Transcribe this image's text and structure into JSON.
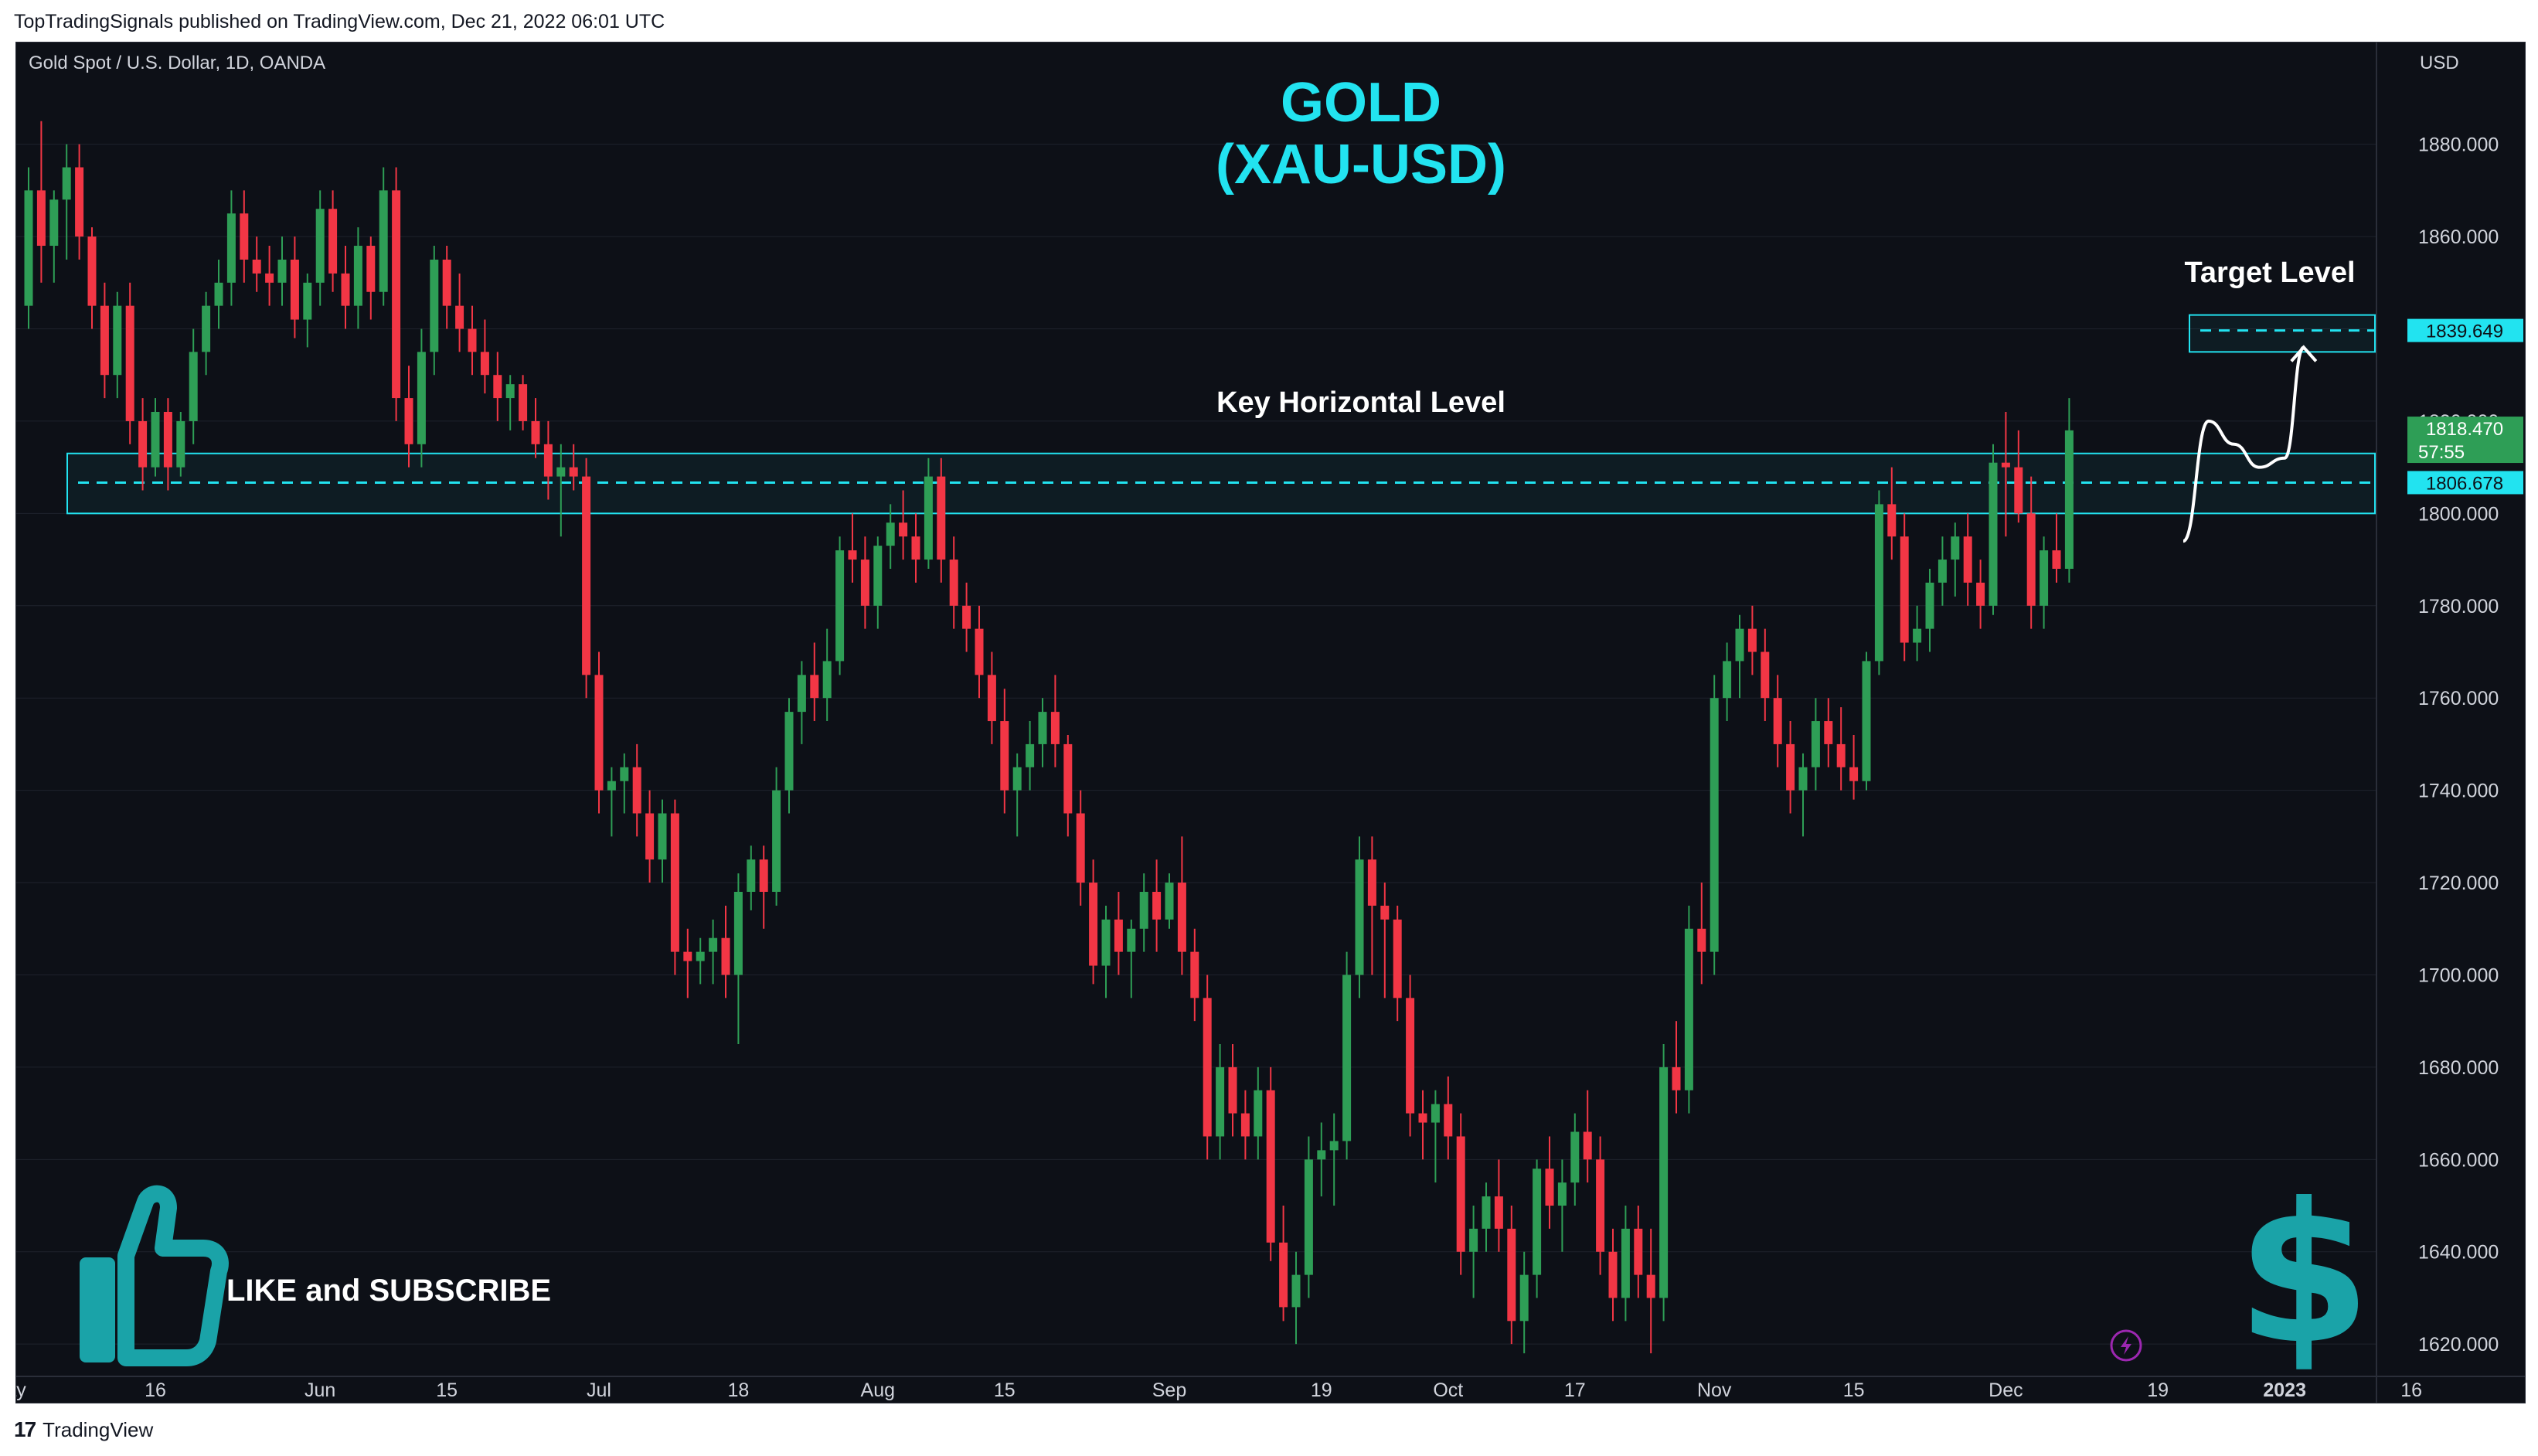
{
  "header": {
    "published_line": "TopTradingSignals published on TradingView.com, Dec 21, 2022 06:01 UTC"
  },
  "chart_title": {
    "symbol_line": "Gold Spot / U.S. Dollar, 1D, OANDA",
    "big_title_line1": "GOLD",
    "big_title_line2": "(XAU-USD)",
    "title_color": "#22e3f0"
  },
  "annotations": {
    "key_level_label": "Key Horizontal Level",
    "target_label": "Target Level",
    "like_subscribe": "LIKE and SUBSCRIBE"
  },
  "footer": {
    "brand": "TradingView",
    "logo_text": "17"
  },
  "colors": {
    "bull": "#2e9e56",
    "bear": "#f23645",
    "cyan": "#22e3f0",
    "background": "#0d1017",
    "teal_icon": "#1aa3a8"
  },
  "icons": [
    "thumbs-up-icon",
    "dollar-sign-icon",
    "lightning-icon"
  ],
  "chart_data": {
    "type": "candlestick",
    "axis_unit": "USD",
    "ylim": [
      1614,
      1892
    ],
    "y_ticks": [
      1620,
      1640,
      1660,
      1680,
      1700,
      1720,
      1740,
      1760,
      1780,
      1800,
      1820,
      1840,
      1860,
      1880
    ],
    "y_tick_labels": [
      "1620.000",
      "1640.000",
      "1660.000",
      "1680.000",
      "1700.000",
      "1720.000",
      "1740.000",
      "1760.000",
      "1780.000",
      "1800.000",
      "1820.000",
      "1840.000",
      "1860.000",
      "1880.000"
    ],
    "x_ticks": [
      {
        "label": "ay",
        "i": -1
      },
      {
        "label": "16",
        "i": 10
      },
      {
        "label": "Jun",
        "i": 23
      },
      {
        "label": "15",
        "i": 33
      },
      {
        "label": "Jul",
        "i": 45
      },
      {
        "label": "18",
        "i": 56
      },
      {
        "label": "Aug",
        "i": 67
      },
      {
        "label": "15",
        "i": 77
      },
      {
        "label": "Sep",
        "i": 90
      },
      {
        "label": "19",
        "i": 102
      },
      {
        "label": "Oct",
        "i": 112
      },
      {
        "label": "17",
        "i": 122
      },
      {
        "label": "Nov",
        "i": 133
      },
      {
        "label": "15",
        "i": 144
      },
      {
        "label": "Dec",
        "i": 156
      },
      {
        "label": "19",
        "i": 168
      },
      {
        "label": "2023",
        "i": 178
      },
      {
        "label": "16",
        "i": 188
      }
    ],
    "key_level": {
      "value": 1806.678,
      "label": "1806.678",
      "zone": [
        1800,
        1813
      ]
    },
    "target_level": {
      "value": 1839.649,
      "label": "1839.649",
      "zone": [
        1835,
        1843
      ]
    },
    "last_price": {
      "value": 1818.47,
      "label": "1818.470",
      "countdown": "57:55"
    },
    "projection_path": [
      [
        170,
        1794
      ],
      [
        172,
        1820
      ],
      [
        174,
        1815
      ],
      [
        176,
        1810
      ],
      [
        178,
        1812
      ],
      [
        179.5,
        1836
      ]
    ],
    "candles": [
      [
        1845,
        1875,
        1840,
        1870
      ],
      [
        1870,
        1885,
        1850,
        1858
      ],
      [
        1858,
        1870,
        1850,
        1868
      ],
      [
        1868,
        1880,
        1855,
        1875
      ],
      [
        1875,
        1880,
        1855,
        1860
      ],
      [
        1860,
        1862,
        1840,
        1845
      ],
      [
        1845,
        1850,
        1825,
        1830
      ],
      [
        1830,
        1848,
        1825,
        1845
      ],
      [
        1845,
        1850,
        1815,
        1820
      ],
      [
        1820,
        1825,
        1805,
        1810
      ],
      [
        1810,
        1825,
        1808,
        1822
      ],
      [
        1822,
        1825,
        1805,
        1810
      ],
      [
        1810,
        1822,
        1808,
        1820
      ],
      [
        1820,
        1840,
        1815,
        1835
      ],
      [
        1835,
        1848,
        1830,
        1845
      ],
      [
        1845,
        1855,
        1840,
        1850
      ],
      [
        1850,
        1870,
        1845,
        1865
      ],
      [
        1865,
        1870,
        1850,
        1855
      ],
      [
        1855,
        1860,
        1848,
        1852
      ],
      [
        1852,
        1858,
        1845,
        1850
      ],
      [
        1850,
        1860,
        1845,
        1855
      ],
      [
        1855,
        1860,
        1838,
        1842
      ],
      [
        1842,
        1852,
        1836,
        1850
      ],
      [
        1850,
        1870,
        1845,
        1866
      ],
      [
        1866,
        1870,
        1848,
        1852
      ],
      [
        1852,
        1858,
        1840,
        1845
      ],
      [
        1845,
        1862,
        1840,
        1858
      ],
      [
        1858,
        1860,
        1842,
        1848
      ],
      [
        1848,
        1875,
        1845,
        1870
      ],
      [
        1870,
        1875,
        1820,
        1825
      ],
      [
        1825,
        1832,
        1810,
        1815
      ],
      [
        1815,
        1840,
        1810,
        1835
      ],
      [
        1835,
        1858,
        1830,
        1855
      ],
      [
        1855,
        1858,
        1840,
        1845
      ],
      [
        1845,
        1852,
        1835,
        1840
      ],
      [
        1840,
        1845,
        1830,
        1835
      ],
      [
        1835,
        1842,
        1826,
        1830
      ],
      [
        1830,
        1835,
        1820,
        1825
      ],
      [
        1825,
        1830,
        1818,
        1828
      ],
      [
        1828,
        1830,
        1818,
        1820
      ],
      [
        1820,
        1825,
        1812,
        1815
      ],
      [
        1815,
        1820,
        1803,
        1808
      ],
      [
        1808,
        1815,
        1795,
        1810
      ],
      [
        1810,
        1815,
        1805,
        1808
      ],
      [
        1808,
        1812,
        1760,
        1765
      ],
      [
        1765,
        1770,
        1735,
        1740
      ],
      [
        1740,
        1745,
        1730,
        1742
      ],
      [
        1742,
        1748,
        1735,
        1745
      ],
      [
        1745,
        1750,
        1730,
        1735
      ],
      [
        1735,
        1740,
        1720,
        1725
      ],
      [
        1725,
        1738,
        1720,
        1735
      ],
      [
        1735,
        1738,
        1700,
        1705
      ],
      [
        1705,
        1710,
        1695,
        1703
      ],
      [
        1703,
        1708,
        1698,
        1705
      ],
      [
        1705,
        1712,
        1698,
        1708
      ],
      [
        1708,
        1715,
        1695,
        1700
      ],
      [
        1700,
        1722,
        1685,
        1718
      ],
      [
        1718,
        1728,
        1714,
        1725
      ],
      [
        1725,
        1728,
        1710,
        1718
      ],
      [
        1718,
        1745,
        1715,
        1740
      ],
      [
        1740,
        1760,
        1735,
        1757
      ],
      [
        1757,
        1768,
        1750,
        1765
      ],
      [
        1765,
        1772,
        1755,
        1760
      ],
      [
        1760,
        1775,
        1755,
        1768
      ],
      [
        1768,
        1795,
        1765,
        1792
      ],
      [
        1792,
        1800,
        1785,
        1790
      ],
      [
        1790,
        1795,
        1775,
        1780
      ],
      [
        1780,
        1795,
        1775,
        1793
      ],
      [
        1793,
        1802,
        1788,
        1798
      ],
      [
        1798,
        1805,
        1790,
        1795
      ],
      [
        1795,
        1800,
        1785,
        1790
      ],
      [
        1790,
        1812,
        1788,
        1808
      ],
      [
        1808,
        1812,
        1785,
        1790
      ],
      [
        1790,
        1795,
        1775,
        1780
      ],
      [
        1780,
        1785,
        1770,
        1775
      ],
      [
        1775,
        1780,
        1760,
        1765
      ],
      [
        1765,
        1770,
        1750,
        1755
      ],
      [
        1755,
        1762,
        1735,
        1740
      ],
      [
        1740,
        1748,
        1730,
        1745
      ],
      [
        1745,
        1755,
        1740,
        1750
      ],
      [
        1750,
        1760,
        1745,
        1757
      ],
      [
        1757,
        1765,
        1745,
        1750
      ],
      [
        1750,
        1752,
        1730,
        1735
      ],
      [
        1735,
        1740,
        1715,
        1720
      ],
      [
        1720,
        1725,
        1698,
        1702
      ],
      [
        1702,
        1715,
        1695,
        1712
      ],
      [
        1712,
        1718,
        1700,
        1705
      ],
      [
        1705,
        1712,
        1695,
        1710
      ],
      [
        1710,
        1722,
        1705,
        1718
      ],
      [
        1718,
        1725,
        1705,
        1712
      ],
      [
        1712,
        1722,
        1710,
        1720
      ],
      [
        1720,
        1730,
        1700,
        1705
      ],
      [
        1705,
        1710,
        1690,
        1695
      ],
      [
        1695,
        1700,
        1660,
        1665
      ],
      [
        1665,
        1685,
        1660,
        1680
      ],
      [
        1680,
        1685,
        1665,
        1670
      ],
      [
        1670,
        1675,
        1660,
        1665
      ],
      [
        1665,
        1680,
        1660,
        1675
      ],
      [
        1675,
        1680,
        1638,
        1642
      ],
      [
        1642,
        1650,
        1625,
        1628
      ],
      [
        1628,
        1640,
        1620,
        1635
      ],
      [
        1635,
        1665,
        1630,
        1660
      ],
      [
        1660,
        1668,
        1652,
        1662
      ],
      [
        1662,
        1670,
        1650,
        1664
      ],
      [
        1664,
        1705,
        1660,
        1700
      ],
      [
        1700,
        1730,
        1695,
        1725
      ],
      [
        1725,
        1730,
        1700,
        1715
      ],
      [
        1715,
        1720,
        1695,
        1712
      ],
      [
        1712,
        1715,
        1690,
        1695
      ],
      [
        1695,
        1700,
        1665,
        1670
      ],
      [
        1670,
        1675,
        1660,
        1668
      ],
      [
        1668,
        1675,
        1655,
        1672
      ],
      [
        1672,
        1678,
        1660,
        1665
      ],
      [
        1665,
        1670,
        1635,
        1640
      ],
      [
        1640,
        1650,
        1630,
        1645
      ],
      [
        1645,
        1655,
        1640,
        1652
      ],
      [
        1652,
        1660,
        1640,
        1645
      ],
      [
        1645,
        1650,
        1620,
        1625
      ],
      [
        1625,
        1640,
        1618,
        1635
      ],
      [
        1635,
        1660,
        1630,
        1658
      ],
      [
        1658,
        1665,
        1645,
        1650
      ],
      [
        1650,
        1660,
        1640,
        1655
      ],
      [
        1655,
        1670,
        1650,
        1666
      ],
      [
        1666,
        1675,
        1655,
        1660
      ],
      [
        1660,
        1665,
        1635,
        1640
      ],
      [
        1640,
        1645,
        1625,
        1630
      ],
      [
        1630,
        1650,
        1625,
        1645
      ],
      [
        1645,
        1650,
        1630,
        1635
      ],
      [
        1635,
        1645,
        1618,
        1630
      ],
      [
        1630,
        1685,
        1625,
        1680
      ],
      [
        1680,
        1690,
        1670,
        1675
      ],
      [
        1675,
        1715,
        1670,
        1710
      ],
      [
        1710,
        1720,
        1698,
        1705
      ],
      [
        1705,
        1765,
        1700,
        1760
      ],
      [
        1760,
        1772,
        1755,
        1768
      ],
      [
        1768,
        1778,
        1760,
        1775
      ],
      [
        1775,
        1780,
        1765,
        1770
      ],
      [
        1770,
        1775,
        1755,
        1760
      ],
      [
        1760,
        1765,
        1745,
        1750
      ],
      [
        1750,
        1755,
        1735,
        1740
      ],
      [
        1740,
        1748,
        1730,
        1745
      ],
      [
        1745,
        1760,
        1740,
        1755
      ],
      [
        1755,
        1760,
        1745,
        1750
      ],
      [
        1750,
        1758,
        1740,
        1745
      ],
      [
        1745,
        1752,
        1738,
        1742
      ],
      [
        1742,
        1770,
        1740,
        1768
      ],
      [
        1768,
        1805,
        1765,
        1802
      ],
      [
        1802,
        1810,
        1790,
        1795
      ],
      [
        1795,
        1800,
        1768,
        1772
      ],
      [
        1772,
        1780,
        1768,
        1775
      ],
      [
        1775,
        1788,
        1770,
        1785
      ],
      [
        1785,
        1795,
        1780,
        1790
      ],
      [
        1790,
        1798,
        1782,
        1795
      ],
      [
        1795,
        1800,
        1780,
        1785
      ],
      [
        1785,
        1790,
        1775,
        1780
      ],
      [
        1780,
        1815,
        1778,
        1811
      ],
      [
        1811,
        1822,
        1795,
        1810
      ],
      [
        1810,
        1818,
        1798,
        1800
      ],
      [
        1800,
        1808,
        1775,
        1780
      ],
      [
        1780,
        1795,
        1775,
        1792
      ],
      [
        1792,
        1800,
        1785,
        1788
      ],
      [
        1788,
        1825,
        1785,
        1818
      ]
    ]
  }
}
